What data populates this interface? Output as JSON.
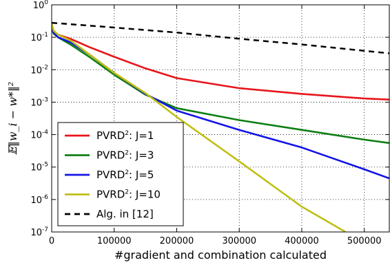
{
  "chart_data": {
    "type": "line",
    "xlabel": "#gradient and combination calculated",
    "ylabel": "𝔼‖w_i − w*‖²",
    "xlim": [
      0,
      540000
    ],
    "ylim": [
      1e-07,
      1
    ],
    "yscale": "log",
    "grid": true,
    "legend_position": "bottom-left",
    "x_ticks": [
      0,
      100000,
      200000,
      300000,
      400000,
      500000
    ],
    "y_ticks": [
      {
        "value": 1,
        "base": "10",
        "exp": "0"
      },
      {
        "value": 0.1,
        "base": "10",
        "exp": "-1"
      },
      {
        "value": 0.01,
        "base": "10",
        "exp": "-2"
      },
      {
        "value": 0.001,
        "base": "10",
        "exp": "-3"
      },
      {
        "value": 0.0001,
        "base": "10",
        "exp": "-4"
      },
      {
        "value": 1e-05,
        "base": "10",
        "exp": "-5"
      },
      {
        "value": 1e-06,
        "base": "10",
        "exp": "-6"
      },
      {
        "value": 1e-07,
        "base": "10",
        "exp": "-7"
      }
    ],
    "series": [
      {
        "legend_base": "PVRD",
        "legend_sup": "2",
        "legend_tail": ": J=1",
        "color": "#e8141b",
        "dash": "solid",
        "x": [
          0,
          3000,
          10000,
          30000,
          60000,
          100000,
          150000,
          200000,
          300000,
          400000,
          500000,
          540000
        ],
        "y": [
          0.25,
          0.16,
          0.12,
          0.09,
          0.05,
          0.025,
          0.011,
          0.0055,
          0.0027,
          0.0018,
          0.0013,
          0.0012
        ]
      },
      {
        "legend_base": "PVRD",
        "legend_sup": "2",
        "legend_tail": ": J=3",
        "color": "#0e7f12",
        "dash": "solid",
        "x": [
          0,
          3000,
          10000,
          30000,
          60000,
          100000,
          150000,
          200000,
          300000,
          400000,
          500000,
          540000
        ],
        "y": [
          0.2,
          0.13,
          0.1,
          0.06,
          0.025,
          0.007,
          0.0017,
          0.00065,
          0.00028,
          0.00014,
          7e-05,
          5.5e-05
        ]
      },
      {
        "legend_base": "PVRD",
        "legend_sup": "2",
        "legend_tail": ": J=5",
        "color": "#1414e6",
        "dash": "solid",
        "x": [
          0,
          3000,
          10000,
          30000,
          60000,
          100000,
          150000,
          200000,
          300000,
          400000,
          500000,
          540000
        ],
        "y": [
          0.22,
          0.14,
          0.1,
          0.07,
          0.03,
          0.008,
          0.0018,
          0.00055,
          0.00014,
          4e-05,
          8.5e-06,
          4.5e-06
        ]
      },
      {
        "legend_base": "PVRD",
        "legend_sup": "2",
        "legend_tail": ": J=10",
        "color": "#bfbf14",
        "dash": "solid",
        "x": [
          0,
          3000,
          10000,
          30000,
          60000,
          100000,
          150000,
          200000,
          300000,
          400000,
          470000
        ],
        "y": [
          0.26,
          0.16,
          0.12,
          0.08,
          0.03,
          0.008,
          0.0019,
          0.00035,
          1.5e-05,
          6e-07,
          1e-07
        ]
      },
      {
        "legend_base": "Alg. in [12]",
        "legend_sup": "",
        "legend_tail": "",
        "color": "#000000",
        "dash": "dashed",
        "x": [
          0,
          100000,
          200000,
          300000,
          400000,
          540000
        ],
        "y": [
          0.28,
          0.2,
          0.14,
          0.09,
          0.06,
          0.032
        ]
      }
    ]
  }
}
